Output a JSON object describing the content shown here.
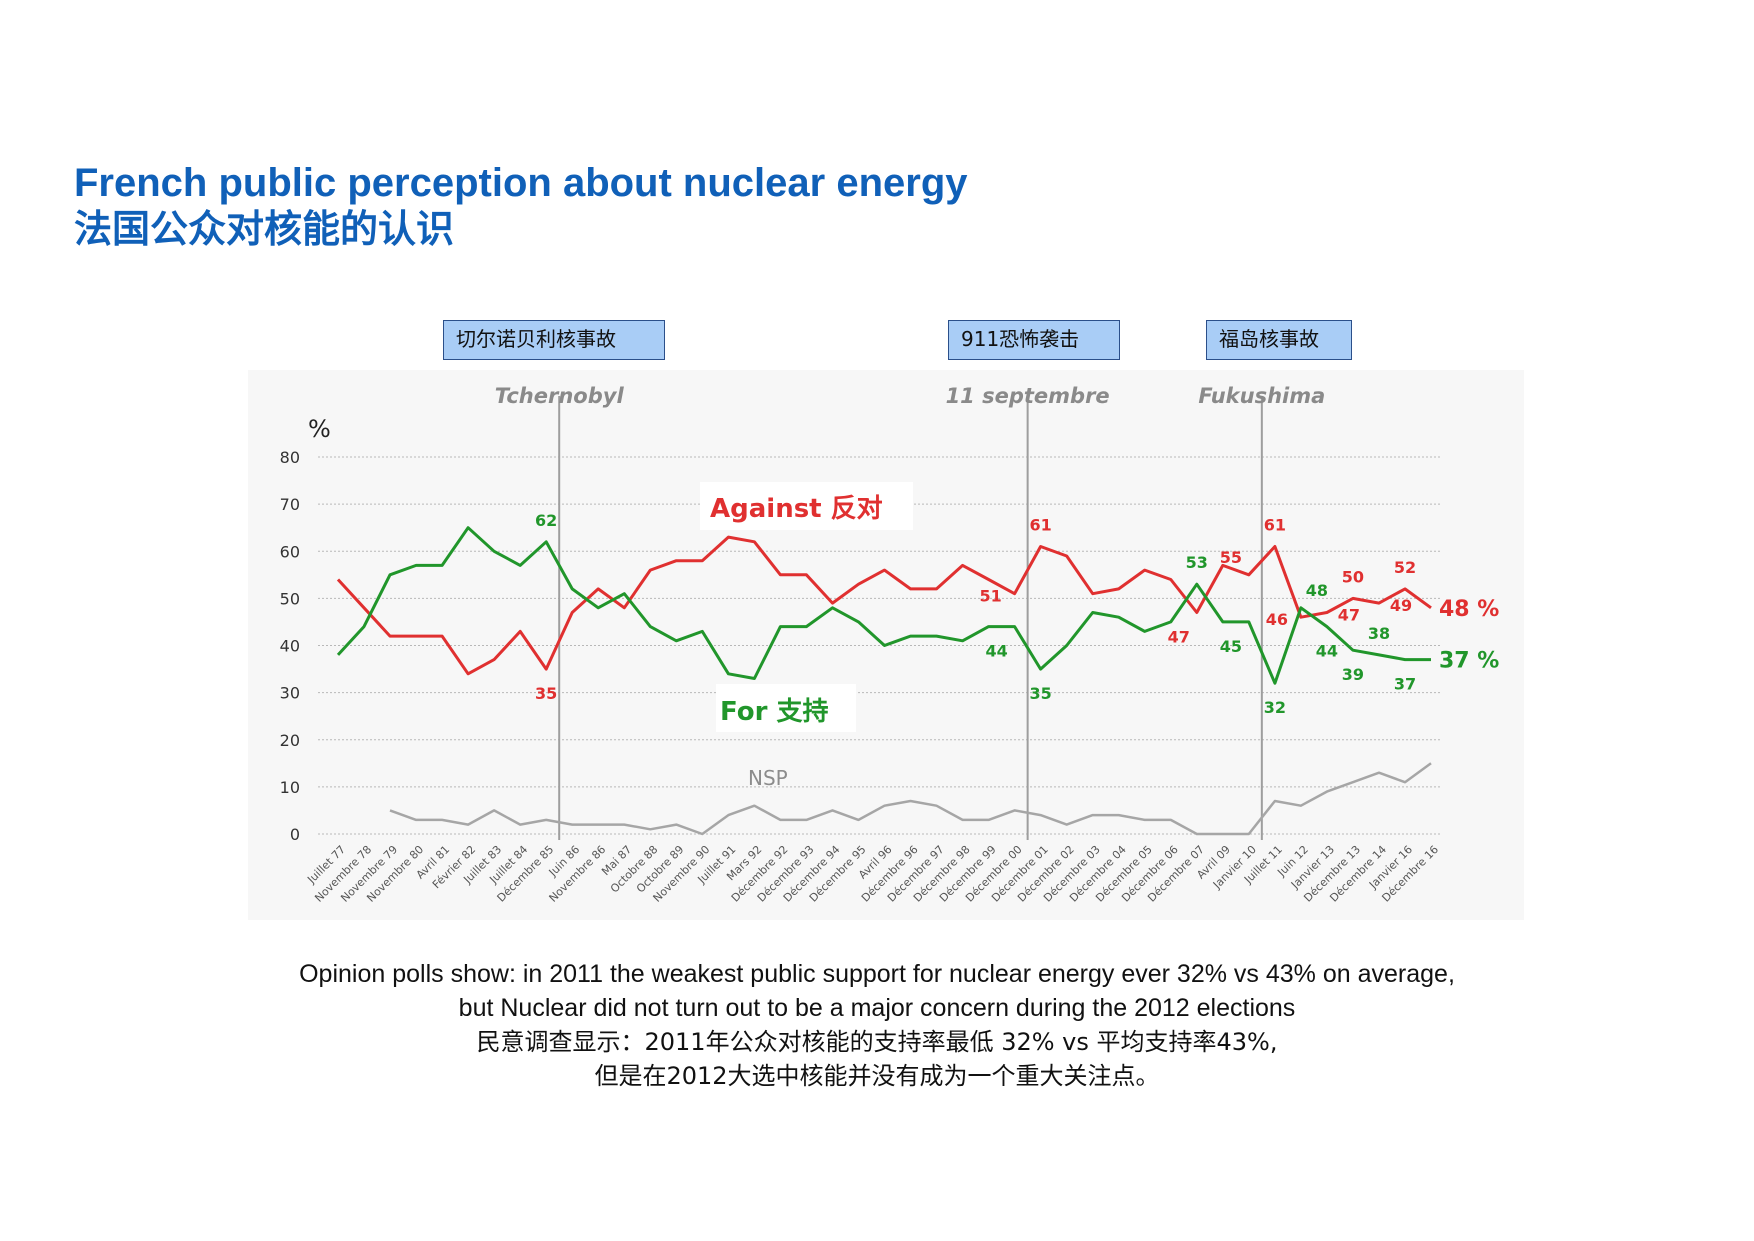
{
  "title": {
    "en": "French public perception about nuclear energy",
    "zh": "法国公众对核能的认识"
  },
  "events": [
    {
      "label": "切尔诺贝利核事故",
      "chart_label": "Tchernobyl"
    },
    {
      "label": "911恐怖袭击",
      "chart_label": "11 septembre"
    },
    {
      "label": "福岛核事故",
      "chart_label": "Fukushima"
    }
  ],
  "caption": {
    "line1": "Opinion polls show: in 2011 the weakest public support for nuclear energy ever 32% vs 43% on average,",
    "line2": "but Nuclear did not turn out to be a major concern during the 2012 elections",
    "line3": "民意调查显示：2011年公众对核能的支持率最低 32% vs 平均支持率43%,",
    "line4": "但是在2012大选中核能并没有成为一个重大关注点。"
  },
  "chart_data": {
    "type": "line",
    "ylabel": "%",
    "ylim": [
      0,
      80
    ],
    "yticks": [
      0,
      10,
      20,
      30,
      40,
      50,
      60,
      70,
      80
    ],
    "grid": true,
    "categories": [
      "Juillet 77",
      "Novembre 78",
      "Novembre 79",
      "Novembre 80",
      "Avril 81",
      "Février 82",
      "Juillet 83",
      "Juillet 84",
      "Décembre 85",
      "Juin 86",
      "Novembre 86",
      "Mai 87",
      "Octobre 88",
      "Octobre 89",
      "Novembre 90",
      "Juillet 91",
      "Mars 92",
      "Décembre 92",
      "Décembre 93",
      "Décembre 94",
      "Décembre 95",
      "Avril 96",
      "Décembre 96",
      "Décembre 97",
      "Décembre 98",
      "Décembre 99",
      "Décembre 00",
      "Décembre 01",
      "Décembre 02",
      "Décembre 03",
      "Décembre 04",
      "Décembre 05",
      "Décembre 06",
      "Décembre 07",
      "Avril 09",
      "Janvier 10",
      "Juillet 11",
      "Juin 12",
      "Janvier 13",
      "Décembre 13",
      "Décembre 14",
      "Janvier 16",
      "Décembre 16"
    ],
    "vlines": [
      {
        "after": "Décembre 85",
        "label": "Tchernobyl"
      },
      {
        "after": "Décembre 00",
        "label": "11 septembre"
      },
      {
        "after": "Janvier 10",
        "label": "Fukushima"
      }
    ],
    "series": [
      {
        "name": "Against 反对",
        "color": "#e03030",
        "values": [
          54,
          48,
          42,
          42,
          42,
          34,
          37,
          43,
          35,
          47,
          52,
          48,
          56,
          58,
          58,
          63,
          62,
          55,
          55,
          49,
          53,
          56,
          52,
          52,
          57,
          54,
          51,
          61,
          59,
          51,
          52,
          56,
          54,
          47,
          57,
          55,
          61,
          46,
          47,
          50,
          49,
          52,
          48
        ],
        "end_label": "48 %"
      },
      {
        "name": "For 支持",
        "color": "#21962b",
        "values": [
          38,
          44,
          55,
          57,
          57,
          65,
          60,
          57,
          62,
          52,
          48,
          51,
          44,
          41,
          43,
          34,
          33,
          44,
          44,
          48,
          45,
          40,
          42,
          42,
          41,
          44,
          44,
          35,
          40,
          47,
          46,
          43,
          45,
          53,
          45,
          45,
          32,
          48,
          44,
          39,
          38,
          37,
          37
        ],
        "end_label": "37 %"
      },
      {
        "name": "NSP",
        "color": "#a6a6a6",
        "values": [
          null,
          null,
          5,
          3,
          3,
          2,
          5,
          2,
          3,
          2,
          2,
          2,
          1,
          2,
          0,
          4,
          6,
          3,
          3,
          5,
          3,
          6,
          7,
          6,
          3,
          3,
          5,
          4,
          2,
          4,
          4,
          3,
          3,
          0,
          0,
          0,
          7,
          6,
          9,
          11,
          13,
          11,
          15
        ]
      }
    ],
    "annotations": [
      {
        "series": 1,
        "index": 8,
        "text": "62",
        "pos": "above"
      },
      {
        "series": 0,
        "index": 8,
        "text": "35",
        "pos": "below"
      },
      {
        "series": 0,
        "index": 26,
        "text": "51",
        "pos": "left"
      },
      {
        "series": 0,
        "index": 27,
        "text": "61",
        "pos": "above"
      },
      {
        "series": 1,
        "index": 26,
        "text": "44",
        "pos": "below-left"
      },
      {
        "series": 1,
        "index": 27,
        "text": "35",
        "pos": "below"
      },
      {
        "series": 1,
        "index": 33,
        "text": "53",
        "pos": "above"
      },
      {
        "series": 0,
        "index": 33,
        "text": "47",
        "pos": "below-left"
      },
      {
        "series": 0,
        "index": 35,
        "text": "55",
        "pos": "above-left"
      },
      {
        "series": 1,
        "index": 35,
        "text": "45",
        "pos": "below-left"
      },
      {
        "series": 0,
        "index": 36,
        "text": "61",
        "pos": "above"
      },
      {
        "series": 1,
        "index": 36,
        "text": "32",
        "pos": "below"
      },
      {
        "series": 0,
        "index": 37,
        "text": "46",
        "pos": "left"
      },
      {
        "series": 1,
        "index": 37,
        "text": "48",
        "pos": "above-right"
      },
      {
        "series": 1,
        "index": 38,
        "text": "44",
        "pos": "below"
      },
      {
        "series": 0,
        "index": 38,
        "text": "47",
        "pos": "right"
      },
      {
        "series": 1,
        "index": 39,
        "text": "39",
        "pos": "below"
      },
      {
        "series": 0,
        "index": 39,
        "text": "50",
        "pos": "above"
      },
      {
        "series": 0,
        "index": 40,
        "text": "49",
        "pos": "right"
      },
      {
        "series": 1,
        "index": 40,
        "text": "38",
        "pos": "above"
      },
      {
        "series": 0,
        "index": 41,
        "text": "52",
        "pos": "above"
      },
      {
        "series": 1,
        "index": 41,
        "text": "37",
        "pos": "below"
      }
    ],
    "callouts": {
      "against": "Against 反对",
      "for": "For 支持",
      "nsp": "NSP"
    }
  }
}
